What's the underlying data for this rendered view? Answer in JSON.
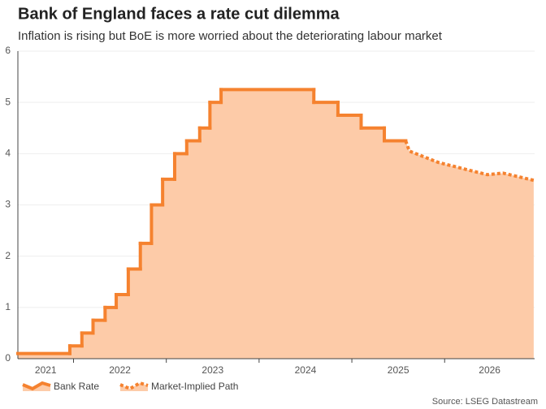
{
  "chart_data": {
    "type": "line",
    "title": "Bank of England faces a rate cut dilemma",
    "subtitle": "Inflation is rising but BoE is more worried about the deteriorating labour market",
    "source": "Source: LSEG Datastream",
    "xlim": [
      2021.4,
      2026.97
    ],
    "xticks": [
      {
        "value": 2021,
        "label": "2021"
      },
      {
        "value": 2022,
        "label": "2022"
      },
      {
        "value": 2023,
        "label": "2023"
      },
      {
        "value": 2024,
        "label": "2024"
      },
      {
        "value": 2025,
        "label": "2025"
      },
      {
        "value": 2026,
        "label": "2026"
      }
    ],
    "ylim": [
      0,
      6
    ],
    "yticks": [
      0,
      1,
      2,
      3,
      4,
      5,
      6
    ],
    "grid": true,
    "series": [
      {
        "name": "Bank Rate",
        "color": "#f5822f",
        "step": "post",
        "style": "solid",
        "x": [
          2021.4,
          2021.96,
          2022.09,
          2022.21,
          2022.34,
          2022.46,
          2022.59,
          2022.72,
          2022.84,
          2022.96,
          2023.09,
          2023.22,
          2023.36,
          2023.47,
          2023.59,
          2024.59,
          2024.85,
          2025.1,
          2025.35,
          2025.58
        ],
        "values": [
          0.1,
          0.25,
          0.5,
          0.75,
          1.0,
          1.25,
          1.75,
          2.25,
          3.0,
          3.5,
          4.0,
          4.25,
          4.5,
          5.0,
          5.25,
          5.0,
          4.75,
          4.5,
          4.25,
          4.25
        ]
      },
      {
        "name": "Market-Implied Path",
        "color": "#f5822f",
        "style": "dotted",
        "x": [
          2025.58,
          2025.62,
          2025.93,
          2026.28,
          2026.46,
          2026.63,
          2026.96
        ],
        "values": [
          4.25,
          4.05,
          3.83,
          3.67,
          3.59,
          3.62,
          3.48
        ]
      }
    ],
    "area_color": "#fdcba8"
  }
}
